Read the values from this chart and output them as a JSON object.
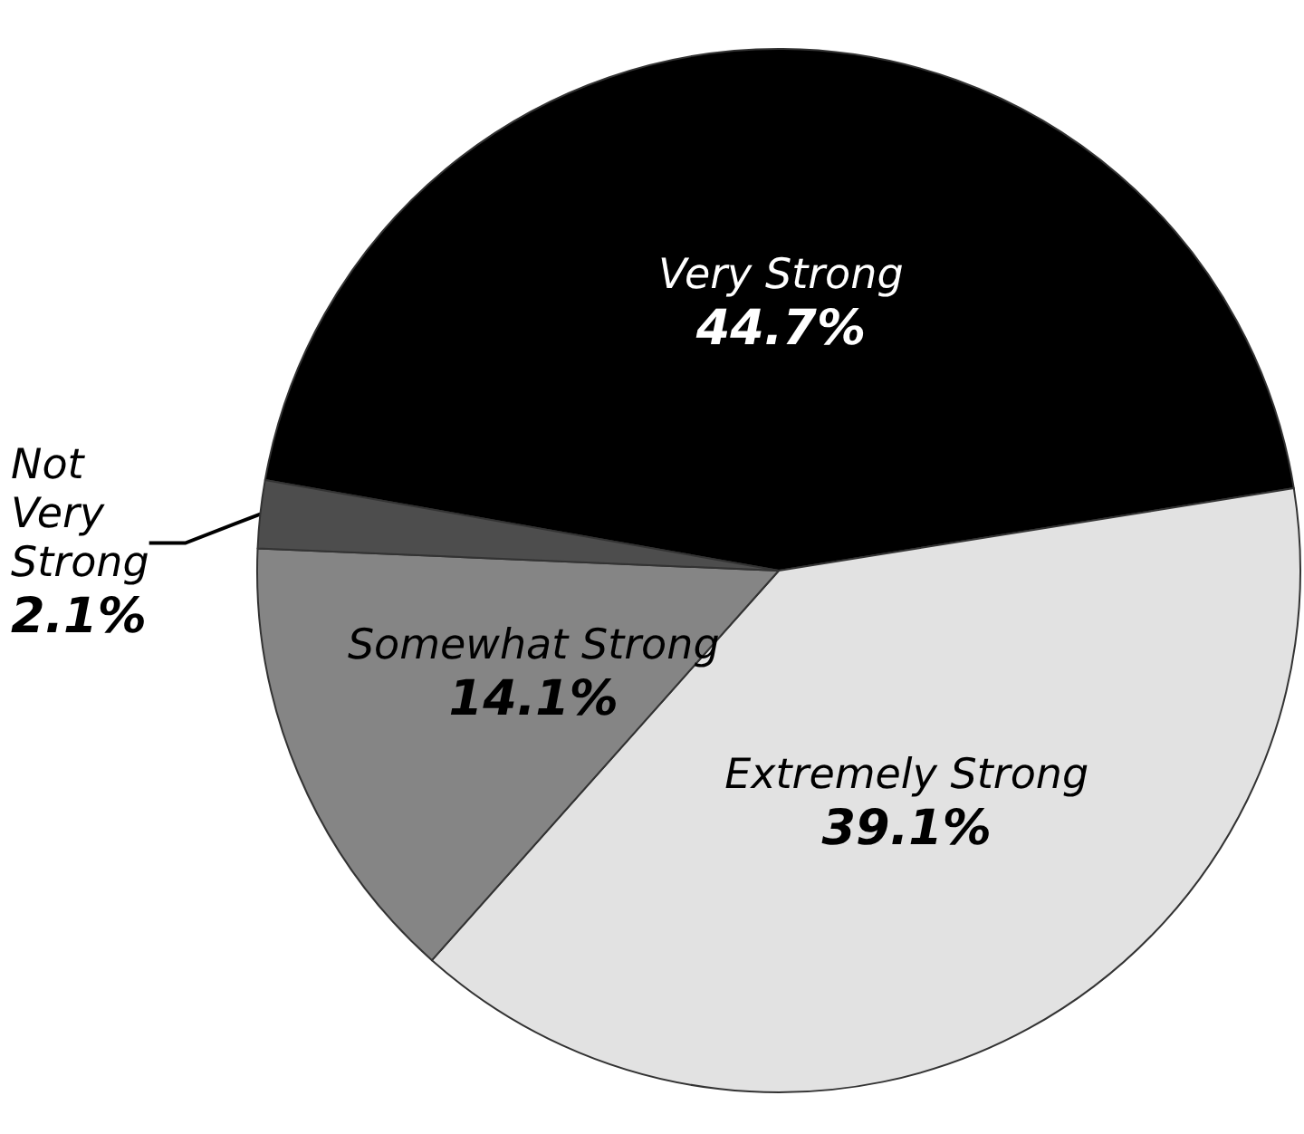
{
  "chart_data": {
    "type": "pie",
    "categories": [
      "Very Strong",
      "Extremely Strong",
      "Somewhat Strong",
      "Not Very Strong"
    ],
    "values": [
      44.7,
      39.1,
      14.1,
      2.1
    ],
    "value_labels": [
      "44.7%",
      "39.1%",
      "14.1%",
      "2.1%"
    ],
    "colors": [
      "#000000",
      "#e2e2e2",
      "#858585",
      "#4d4d4d"
    ]
  }
}
